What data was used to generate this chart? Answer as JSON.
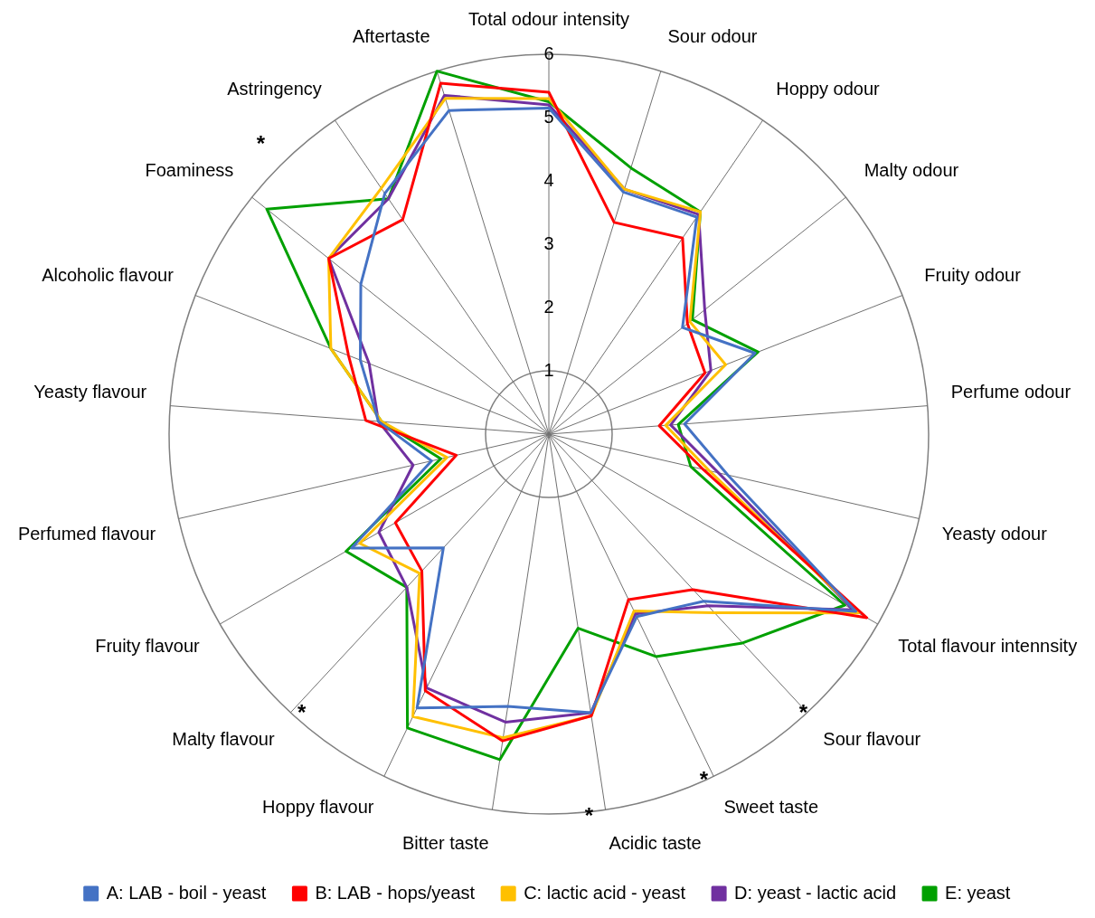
{
  "chart_data": {
    "type": "radar",
    "categories": [
      "Total odour intensity",
      "Sour odour",
      "Hoppy odour",
      "Malty odour",
      "Fruity odour",
      "Perfume odour",
      "Yeasty odour",
      "Total flavour intennsity",
      "Sour flavour",
      "Sweet taste",
      "Acidic taste",
      "Bitter taste",
      "Hoppy flavour",
      "Malty flavour",
      "Fruity flavour",
      "Perfumed flavour",
      "Yeasty flavour",
      "Alcoholic flavour",
      "Foaminess",
      "Astringency",
      "Aftertaste"
    ],
    "series": [
      {
        "name": "A: LAB - boil - yeast",
        "color": "#4472c4",
        "values": [
          5.15,
          4.0,
          4.15,
          2.7,
          3.5,
          2.15,
          2.9,
          5.6,
          3.6,
          3.2,
          4.45,
          4.35,
          4.8,
          2.45,
          3.6,
          1.9,
          2.7,
          3.2,
          3.8,
          4.6,
          5.35
        ]
      },
      {
        "name": "B: LAB - hops/yeast",
        "color": "#ff0000",
        "values": [
          5.4,
          3.5,
          3.75,
          2.8,
          2.65,
          1.75,
          2.5,
          5.8,
          3.35,
          2.9,
          4.5,
          4.9,
          4.5,
          2.95,
          2.8,
          1.5,
          2.9,
          3.4,
          4.45,
          4.1,
          5.8
        ]
      },
      {
        "name": "C: lactic acid - yeast",
        "color": "#ffc000",
        "values": [
          5.3,
          4.05,
          4.25,
          2.85,
          3.0,
          1.85,
          2.6,
          5.65,
          3.85,
          3.1,
          4.5,
          4.85,
          4.95,
          3.0,
          3.45,
          1.65,
          2.65,
          3.7,
          4.45,
          4.7,
          5.55
        ]
      },
      {
        "name": "D: yeast - lactic acid",
        "color": "#7030a0",
        "values": [
          5.2,
          4.05,
          4.2,
          3.15,
          2.75,
          1.93,
          2.75,
          5.55,
          3.7,
          3.15,
          4.45,
          4.6,
          4.45,
          3.3,
          3.1,
          2.2,
          2.7,
          3.05,
          4.45,
          4.5,
          5.6
        ]
      },
      {
        "name": "E: yeast",
        "color": "#00a000",
        "values": [
          5.25,
          4.4,
          4.25,
          2.9,
          3.55,
          2.05,
          2.3,
          5.4,
          4.5,
          3.9,
          3.1,
          5.2,
          5.15,
          3.3,
          3.7,
          1.75,
          2.65,
          3.7,
          5.7,
          4.5,
          6.0
        ]
      }
    ],
    "ylim": [
      0,
      6
    ],
    "yticks": [
      1,
      2,
      3,
      4,
      5,
      6
    ],
    "grid": true,
    "legend": "bottom",
    "marker": "none",
    "line_style": "solid",
    "annotations": [
      {
        "text": "*",
        "x": "Foaminess"
      },
      {
        "text": "*",
        "x": "Malty flavour"
      },
      {
        "text": "*",
        "x": "Sour flavour"
      },
      {
        "text": "*",
        "x": "Sweet taste"
      },
      {
        "text": "*",
        "x": "Acidic taste"
      }
    ]
  }
}
